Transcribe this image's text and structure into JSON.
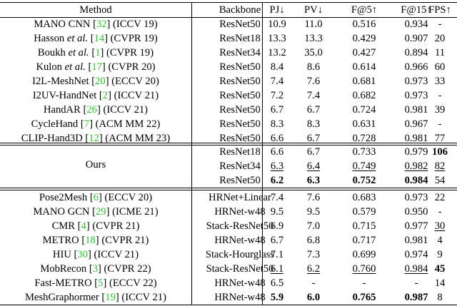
{
  "headers": [
    "Method",
    "Backbone",
    "PJ↓",
    "PV↓",
    "F@5↑",
    "F@15↑",
    "FPS↑"
  ],
  "group1": [
    {
      "pre": "MANO CNN ",
      "cite": "32",
      "post": " (ICCV 19)",
      "backbone": "ResNet50",
      "pj": "10.9",
      "pv": "11.0",
      "f5": "0.516",
      "f15": "0.934",
      "fps": "-"
    },
    {
      "pre": "Hasson et al. ",
      "cite": "14",
      "post": " (CVPR 19)",
      "backbone": "ResNet18",
      "pj": "13.3",
      "pv": "13.3",
      "f5": "0.429",
      "f15": "0.907",
      "fps": "20"
    },
    {
      "pre": "Boukh et al. ",
      "cite": "1",
      "post": " (CVPR 19)",
      "backbone": "ResNet34",
      "pj": "13.2",
      "pv": "35.0",
      "f5": "0.427",
      "f15": "0.894",
      "fps": "11"
    },
    {
      "pre": "Kulon et al. ",
      "cite": "17",
      "post": " (CVPR 20)",
      "backbone": "ResNet50",
      "pj": "8.4",
      "pv": "8.6",
      "f5": "0.614",
      "f15": "0.966",
      "fps": "60"
    },
    {
      "pre": "I2L-MeshNet ",
      "cite": "20",
      "post": " (ECCV 20)",
      "backbone": "ResNet50",
      "pj": "7.4",
      "pv": "7.6",
      "f5": "0.681",
      "f15": "0.973",
      "fps": "33"
    },
    {
      "pre": "I2UV-HandNet ",
      "cite": "2",
      "post": " (ICCV 21)",
      "backbone": "ResNet50",
      "pj": "7.2",
      "pv": "7.4",
      "f5": "0.682",
      "f15": "0.973",
      "fps": "-"
    },
    {
      "pre": "HandAR ",
      "cite": "26",
      "post": " (ICCV 21)",
      "backbone": "ResNet50",
      "pj": "6.7",
      "pv": "6.7",
      "f5": "0.724",
      "f15": "0.981",
      "fps": "39"
    },
    {
      "pre": "CycleHand ",
      "cite": "7",
      "post": " (ACM MM 22)",
      "backbone": "ResNet50",
      "pj": "8.3",
      "pv": "8.3",
      "f5": "0.631",
      "f15": "0.967",
      "fps": "-"
    },
    {
      "pre": "CLIP-Hand3D ",
      "cite": "12",
      "post": " (ACM MM 23)",
      "backbone": "ResNet50",
      "pj": "6.6",
      "pv": "6.7",
      "f5": "0.728",
      "f15": "0.981",
      "fps": "77"
    }
  ],
  "ours_label": "Ours",
  "ours": [
    {
      "backbone": "ResNet18",
      "pj": "6.6",
      "pv": "6.7",
      "f5": "0.733",
      "f15": "0.979",
      "fps": "106"
    },
    {
      "backbone": "ResNet34",
      "pj": "6.3",
      "pv": "6.4",
      "f5": "0.749",
      "f15": "0.982",
      "fps": "82"
    },
    {
      "backbone": "ResNet50",
      "pj": "6.2",
      "pv": "6.3",
      "f5": "0.752",
      "f15": "0.984",
      "fps": "54"
    }
  ],
  "group2": [
    {
      "pre": "Pose2Mesh ",
      "cite": "6",
      "post": " (ECCV 20)",
      "backbone": "HRNet+Linear",
      "pj": "7.4",
      "pv": "7.6",
      "f5": "0.683",
      "f15": "0.973",
      "fps": "22"
    },
    {
      "pre": "MANO GCN ",
      "cite": "29",
      "post": " (ICME 21)",
      "backbone": "HRNet-w48",
      "pj": "9.5",
      "pv": "9.5",
      "f5": "0.579",
      "f15": "0.950",
      "fps": "-"
    },
    {
      "pre": "CMR ",
      "cite": "4",
      "post": " (CVPR 21)",
      "backbone": "Stack-ResNet50",
      "pj": "6.9",
      "pv": "7.0",
      "f5": "0.715",
      "f15": "0.977",
      "fps": "30"
    },
    {
      "pre": "METRO ",
      "cite": "18",
      "post": " (CVPR 21)",
      "backbone": "HRNet-w48",
      "pj": "6.7",
      "pv": "6.8",
      "f5": "0.717",
      "f15": "0.981",
      "fps": "4"
    },
    {
      "pre": "HIU ",
      "cite": "30",
      "post": " (ICCV 21)",
      "backbone": "Stack-Hourglass",
      "pj": "7.1",
      "pv": "7.3",
      "f5": "0.699",
      "f15": "0.974",
      "fps": "9"
    },
    {
      "pre": "MobRecon ",
      "cite": "3",
      "post": " (CVPR 22)",
      "backbone": "Stack-ResNet50",
      "pj": "6.1",
      "pv": "6.2",
      "f5": "0.760",
      "f15": "0.984",
      "fps": "45"
    },
    {
      "pre": "Fast-METRO ",
      "cite": "5",
      "post": " (ECCV 22)",
      "backbone": "HRNet-w48",
      "pj": "6.5",
      "pv": "-",
      "f5": "-",
      "f15": "-",
      "fps": "14"
    },
    {
      "pre": "MeshGraphormer ",
      "cite": "19",
      "post": " (ICCV 21)",
      "backbone": "HRNet-w48",
      "pj": "5.9",
      "pv": "6.0",
      "f5": "0.765",
      "f15": "0.987",
      "fps": "8"
    }
  ],
  "emphasis": {
    "ours": [
      {
        "fps": "b"
      },
      {
        "pj": "u",
        "pv": "u",
        "f5": "u",
        "f15": "u",
        "fps": "u"
      },
      {
        "pj": "b",
        "pv": "b",
        "f5": "b",
        "f15": "b"
      }
    ],
    "group2": [
      {},
      {},
      {
        "fps": "u"
      },
      {},
      {},
      {
        "pj": "u",
        "pv": "u",
        "f5": "u",
        "f15": "u",
        "fps": "b"
      },
      {},
      {
        "pj": "b",
        "pv": "b",
        "f5": "b",
        "f15": "b"
      }
    ]
  },
  "colors": {
    "cite": "#2fbf2f"
  }
}
